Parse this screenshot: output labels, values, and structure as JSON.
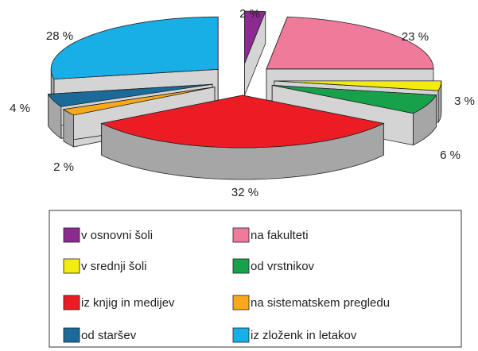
{
  "chart_data": {
    "type": "pie3d",
    "categories": [
      "v osnovni šoli",
      "na fakulteti",
      "v srednji šoli",
      "od vrstnikov",
      "iz knjig in medijev",
      "na sistematskem pregledu",
      "od staršev",
      "iz zloženk in letakov"
    ],
    "values": [
      2,
      23,
      3,
      6,
      32,
      2,
      4,
      28
    ],
    "value_labels": [
      "2 %",
      "23 %",
      "3 %",
      "6 %",
      "32 %",
      "2 %",
      "4 %",
      "28 %"
    ],
    "colors": [
      "#8b2a8f",
      "#f07a9a",
      "#f2ec12",
      "#16a14a",
      "#ec1c24",
      "#f7a81b",
      "#1a6b9a",
      "#18aee6"
    ]
  }
}
